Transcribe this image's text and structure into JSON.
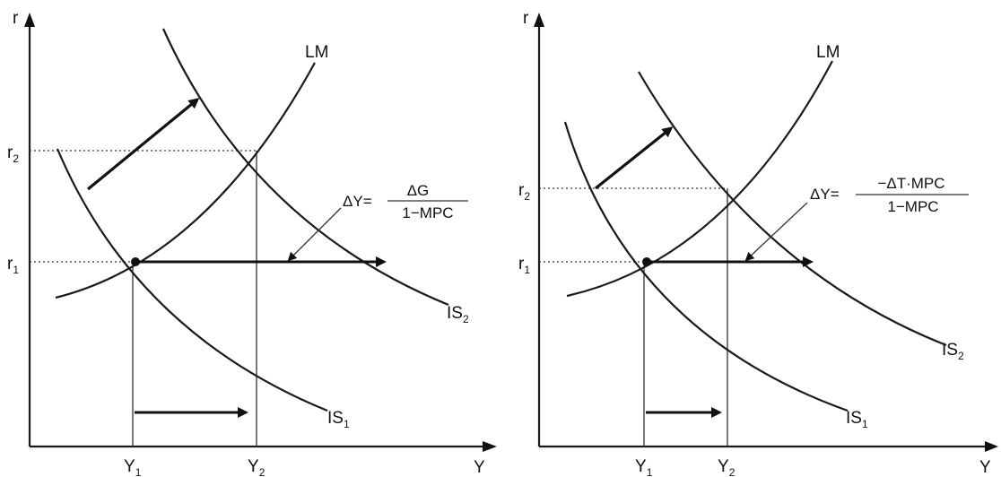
{
  "left": {
    "y_axis": "r",
    "x_axis": "Y",
    "lm": "LM",
    "is1": "IS",
    "is1_sub": "1",
    "is2": "IS",
    "is2_sub": "2",
    "r1": "r",
    "r1_sub": "1",
    "r2": "r",
    "r2_sub": "2",
    "y1": "Y",
    "y1_sub": "1",
    "y2": "Y",
    "y2_sub": "2",
    "formula_lhs": "ΔY=",
    "formula_num": "ΔG",
    "formula_den": "1−MPC"
  },
  "right": {
    "y_axis": "r",
    "x_axis": "Y",
    "lm": "LM",
    "is1": "IS",
    "is1_sub": "1",
    "is2": "IS",
    "is2_sub": "2",
    "r1": "r",
    "r1_sub": "1",
    "r2": "r",
    "r2_sub": "2",
    "y1": "Y",
    "y1_sub": "1",
    "y2": "Y",
    "y2_sub": "2",
    "formula_lhs": "ΔY=",
    "formula_num": "−ΔT·MPC",
    "formula_den": "1−MPC"
  }
}
